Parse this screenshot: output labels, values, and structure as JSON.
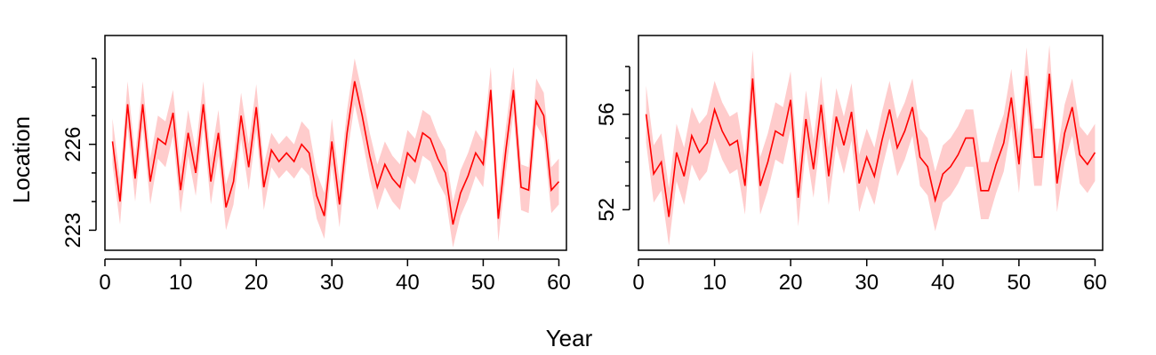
{
  "figure": {
    "xlabel": "Year",
    "ylabel": "Location"
  },
  "colors": {
    "line": "#ff0000",
    "band": "#ffcccc"
  },
  "chart_data": [
    {
      "type": "line",
      "xlim": [
        0,
        61
      ],
      "ylim": [
        222.3,
        229.8
      ],
      "x_ticks": [
        0,
        10,
        20,
        30,
        40,
        50,
        60
      ],
      "y_ticks_labeled": [
        223,
        226
      ],
      "y_ticks_minor": [
        224,
        225,
        227,
        228,
        229
      ],
      "x": [
        1,
        2,
        3,
        4,
        5,
        6,
        7,
        8,
        9,
        10,
        11,
        12,
        13,
        14,
        15,
        16,
        17,
        18,
        19,
        20,
        21,
        22,
        23,
        24,
        25,
        26,
        27,
        28,
        29,
        30,
        31,
        32,
        33,
        34,
        35,
        36,
        37,
        38,
        39,
        40,
        41,
        42,
        43,
        44,
        45,
        46,
        47,
        48,
        49,
        50,
        51,
        52,
        53,
        54,
        55,
        56,
        57,
        58,
        59,
        60
      ],
      "series": [
        {
          "y": [
            226.1,
            224.0,
            227.4,
            224.8,
            227.4,
            224.7,
            226.2,
            226.0,
            227.1,
            224.4,
            226.4,
            225.0,
            227.4,
            224.7,
            226.4,
            223.8,
            224.7,
            227.0,
            225.2,
            227.3,
            224.5,
            225.8,
            225.4,
            225.7,
            225.4,
            226.0,
            225.7,
            224.2,
            223.5,
            226.1,
            223.9,
            226.4,
            228.2,
            227.0,
            225.6,
            224.5,
            225.3,
            224.8,
            224.5,
            225.7,
            225.4,
            226.4,
            226.2,
            225.5,
            225.0,
            223.2,
            224.3,
            224.9,
            225.7,
            225.3,
            227.9,
            223.4,
            225.8,
            227.9,
            224.5,
            224.4,
            227.5,
            227.0,
            224.4,
            224.7
          ],
          "lower": [
            225.3,
            223.2,
            226.6,
            224.0,
            226.6,
            223.9,
            225.5,
            225.2,
            226.3,
            223.6,
            225.6,
            224.2,
            226.6,
            223.9,
            225.6,
            223.0,
            223.9,
            226.2,
            224.4,
            226.5,
            223.7,
            225.2,
            224.8,
            225.1,
            224.8,
            225.2,
            224.9,
            223.4,
            222.7,
            225.3,
            223.1,
            225.6,
            227.4,
            226.2,
            224.8,
            223.7,
            224.5,
            224.0,
            223.7,
            224.9,
            224.6,
            225.6,
            225.4,
            224.7,
            224.2,
            222.4,
            223.5,
            224.1,
            224.9,
            224.5,
            227.1,
            222.6,
            225.0,
            227.1,
            223.7,
            223.6,
            226.7,
            226.2,
            223.6,
            223.9
          ],
          "upper": [
            226.9,
            224.8,
            228.2,
            225.6,
            228.2,
            225.5,
            227.0,
            226.8,
            227.9,
            225.2,
            227.2,
            225.8,
            228.2,
            225.5,
            227.2,
            224.6,
            225.5,
            227.8,
            226.0,
            228.1,
            225.3,
            226.4,
            226.0,
            226.3,
            226.0,
            226.8,
            226.5,
            225.0,
            224.3,
            226.9,
            224.7,
            227.2,
            229.0,
            227.8,
            226.4,
            225.3,
            226.1,
            225.6,
            225.3,
            226.5,
            226.2,
            227.2,
            227.0,
            226.3,
            225.8,
            224.0,
            225.1,
            225.7,
            226.5,
            226.1,
            228.7,
            224.2,
            226.6,
            228.7,
            225.3,
            225.2,
            228.3,
            227.8,
            225.2,
            225.5
          ]
        }
      ]
    },
    {
      "type": "line",
      "xlim": [
        0,
        61
      ],
      "ylim": [
        50.3,
        59.3
      ],
      "x_ticks": [
        0,
        10,
        20,
        30,
        40,
        50,
        60
      ],
      "y_ticks_labeled": [
        52,
        56
      ],
      "y_ticks_minor": [
        53,
        54,
        55,
        57,
        58
      ],
      "x": [
        1,
        2,
        3,
        4,
        5,
        6,
        7,
        8,
        9,
        10,
        11,
        12,
        13,
        14,
        15,
        16,
        17,
        18,
        19,
        20,
        21,
        22,
        23,
        24,
        25,
        26,
        27,
        28,
        29,
        30,
        31,
        32,
        33,
        34,
        35,
        36,
        37,
        38,
        39,
        40,
        41,
        42,
        43,
        44,
        45,
        46,
        47,
        48,
        49,
        50,
        51,
        52,
        53,
        54,
        55,
        56,
        57,
        58,
        59,
        60
      ],
      "series": [
        {
          "y": [
            56.0,
            53.5,
            54.0,
            51.7,
            54.4,
            53.4,
            55.1,
            54.4,
            54.8,
            56.2,
            55.3,
            54.7,
            54.9,
            53.0,
            57.5,
            53.0,
            54.0,
            55.3,
            55.1,
            56.6,
            52.5,
            55.8,
            53.7,
            56.4,
            53.4,
            55.9,
            54.7,
            56.1,
            53.1,
            54.2,
            53.4,
            54.9,
            56.2,
            54.6,
            55.3,
            56.3,
            54.2,
            53.8,
            52.4,
            53.5,
            53.8,
            54.3,
            55.0,
            55.0,
            52.8,
            52.8,
            53.9,
            54.8,
            56.7,
            53.9,
            57.6,
            54.2,
            54.2,
            57.7,
            53.1,
            55.2,
            56.3,
            54.3,
            53.9,
            54.4
          ],
          "lower": [
            54.8,
            52.3,
            52.8,
            50.5,
            53.2,
            52.2,
            53.9,
            53.2,
            53.6,
            55.0,
            54.1,
            53.5,
            53.7,
            51.8,
            56.3,
            51.8,
            52.8,
            54.1,
            53.9,
            55.4,
            51.3,
            54.6,
            52.5,
            55.2,
            52.2,
            54.7,
            53.5,
            54.9,
            51.9,
            53.0,
            52.2,
            53.7,
            55.0,
            53.4,
            54.1,
            55.1,
            53.0,
            52.6,
            51.1,
            52.3,
            52.6,
            53.1,
            53.8,
            53.8,
            51.6,
            51.6,
            52.7,
            53.6,
            55.5,
            52.7,
            56.4,
            53.0,
            53.0,
            56.5,
            51.9,
            54.0,
            55.1,
            53.1,
            52.7,
            53.2
          ],
          "upper": [
            57.2,
            54.7,
            55.2,
            52.9,
            55.6,
            54.6,
            56.3,
            55.6,
            56.0,
            57.4,
            56.5,
            55.9,
            56.1,
            54.2,
            58.7,
            54.2,
            55.2,
            56.5,
            56.3,
            57.8,
            53.7,
            57.0,
            54.9,
            57.6,
            54.6,
            57.1,
            55.9,
            57.3,
            54.3,
            55.4,
            54.6,
            56.1,
            57.4,
            55.8,
            56.5,
            57.5,
            55.4,
            55.0,
            53.6,
            54.7,
            55.0,
            55.5,
            56.2,
            56.2,
            54.0,
            54.0,
            55.1,
            56.0,
            57.9,
            55.1,
            58.8,
            55.4,
            55.4,
            58.9,
            54.3,
            56.4,
            57.5,
            55.5,
            55.1,
            55.6
          ]
        }
      ]
    }
  ]
}
